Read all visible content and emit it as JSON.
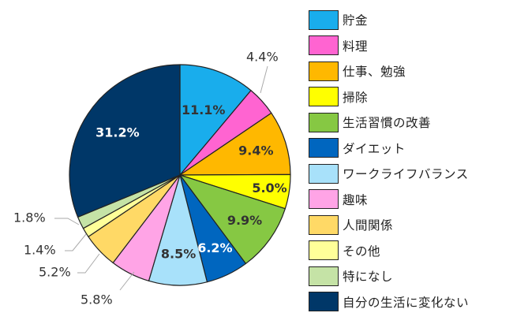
{
  "chart_data": {
    "type": "pie",
    "title": "",
    "categories": [
      "貯金",
      "料理",
      "仕事、勉強",
      "掃除",
      "生活習慣の改善",
      "ダイエット",
      "ワークライフバランス",
      "趣味",
      "人間関係",
      "その他",
      "特になし",
      "自分の生活に変化ない"
    ],
    "values": [
      11.1,
      4.4,
      9.4,
      5.0,
      9.9,
      6.2,
      8.5,
      5.8,
      5.2,
      1.4,
      1.8,
      31.2
    ],
    "labels": [
      "11.1%",
      "4.4%",
      "9.4%",
      "5.0%",
      "9.9%",
      "6.2%",
      "8.5%",
      "5.8%",
      "5.2%",
      "1.4%",
      "1.8%",
      "31.2%"
    ],
    "colors": [
      "#19ADEC",
      "#FF64D1",
      "#FFB800",
      "#FFFF00",
      "#86C843",
      "#0066BF",
      "#A8E1FA",
      "#FFA4E6",
      "#FFD966",
      "#FFFF99",
      "#C5E3A6",
      "#003768"
    ],
    "start_angle_deg": 0,
    "direction": "clockwise",
    "legend_position": "right"
  }
}
